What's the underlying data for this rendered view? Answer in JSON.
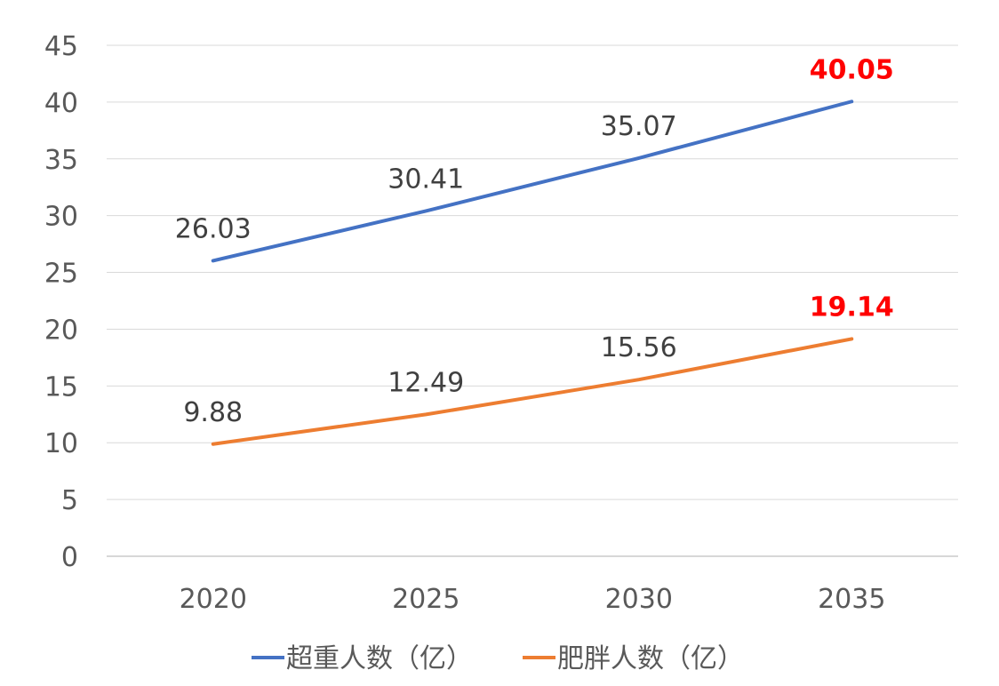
{
  "chart_data": {
    "type": "line",
    "categories": [
      "2020",
      "2025",
      "2030",
      "2035"
    ],
    "series": [
      {
        "name": "超重人数（亿）",
        "values": [
          26.03,
          30.41,
          35.07,
          40.05
        ],
        "labels": [
          "26.03",
          "30.41",
          "35.07",
          "40.05"
        ],
        "color": "#4472c4"
      },
      {
        "name": "肥胖人数（亿）",
        "values": [
          9.88,
          12.49,
          15.56,
          19.14
        ],
        "labels": [
          "9.88",
          "12.49",
          "15.56",
          "19.14"
        ],
        "color": "#ed7d31"
      }
    ],
    "ylim": [
      0,
      45
    ],
    "yticks": [
      "0",
      "5",
      "10",
      "15",
      "20",
      "25",
      "30",
      "35",
      "40",
      "45"
    ],
    "highlight_color": "#ff0000",
    "grid": true,
    "legend_position": "bottom"
  }
}
